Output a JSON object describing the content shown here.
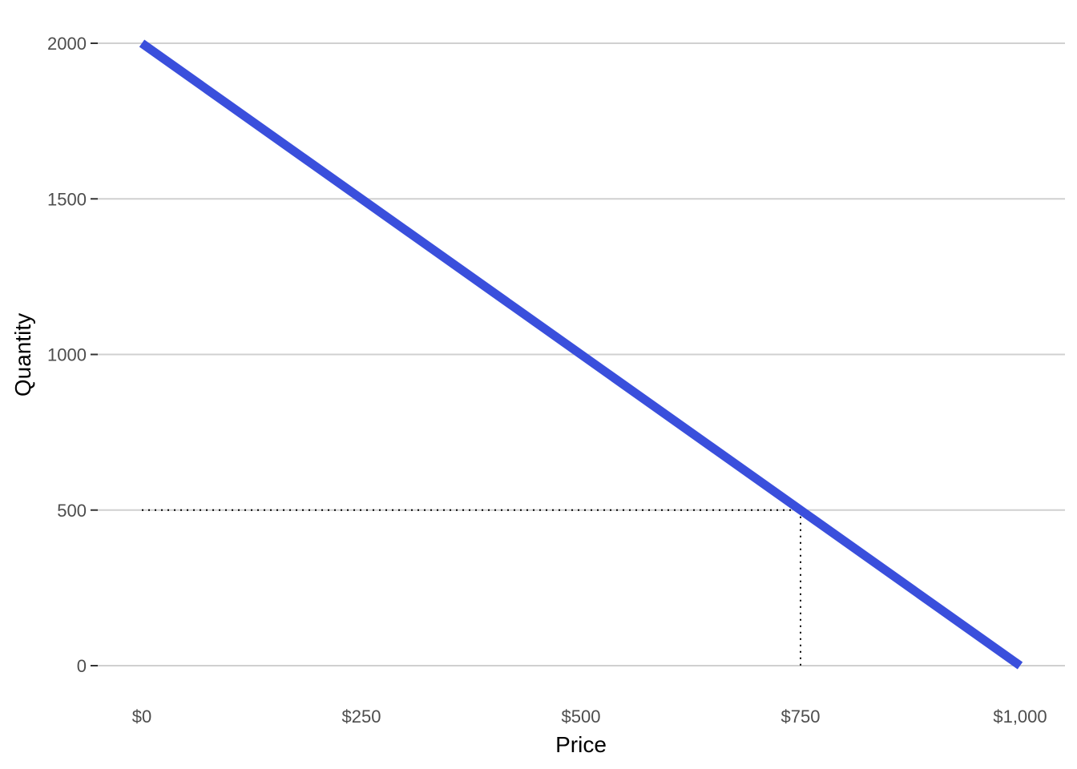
{
  "chart_data": {
    "type": "line",
    "title": "",
    "xlabel": "Price",
    "ylabel": "Quantity",
    "xlim": [
      0,
      1000
    ],
    "ylim": [
      0,
      2000
    ],
    "x_ticks": [
      0,
      250,
      500,
      750,
      1000
    ],
    "x_tick_labels": [
      "$0",
      "$250",
      "$500",
      "$750",
      "$1,000"
    ],
    "y_ticks": [
      0,
      500,
      1000,
      1500,
      2000
    ],
    "y_tick_labels": [
      "0",
      "500",
      "1000",
      "1500",
      "2000"
    ],
    "grid": "horizontal major",
    "legend": "none",
    "series": [
      {
        "x": [
          0,
          1000
        ],
        "y": [
          2000,
          0
        ],
        "color": "#3a4fdc"
      }
    ],
    "reference_point": {
      "x": 750,
      "y": 500
    },
    "guide_style": "dotted",
    "guide_color": "#000000"
  }
}
